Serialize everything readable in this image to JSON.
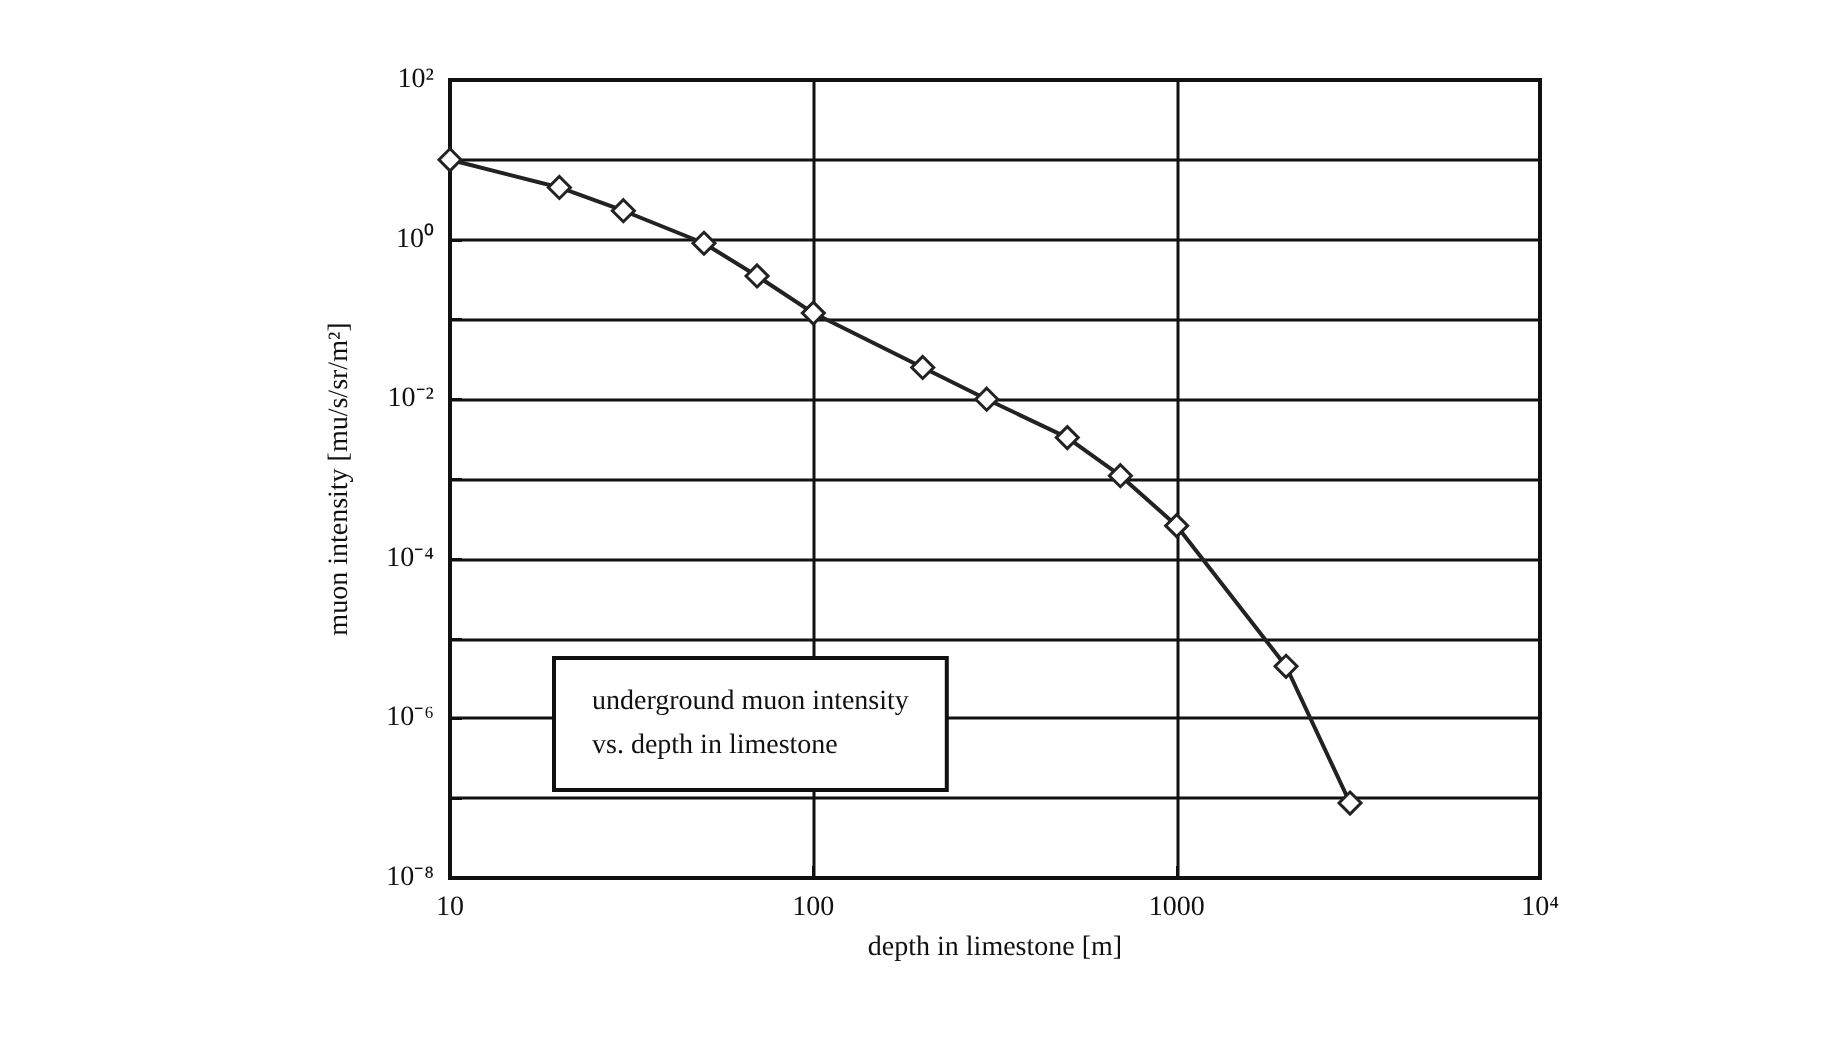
{
  "chart_data": {
    "type": "line",
    "xlabel": "depth in limestone [m]",
    "ylabel": "muon intensity [mu/s/sr/m²]",
    "annotations": [
      "underground muon intensity\nvs. depth in limestone"
    ],
    "x": [
      10,
      20,
      30,
      50,
      70,
      100,
      200,
      300,
      500,
      700,
      1000,
      2000,
      3000
    ],
    "series": [
      {
        "color": "#222222",
        "values": [
          10,
          4.5,
          2.3,
          0.9,
          0.35,
          0.12,
          0.025,
          0.01,
          0.0033,
          0.0011,
          0.00026,
          4.5e-06,
          8.7e-08
        ]
      }
    ],
    "log": "xy",
    "xlim": [
      10,
      10000
    ],
    "ylim": [
      1e-08,
      100
    ],
    "xticks": [
      10,
      100,
      1000,
      {
        "value": 10000,
        "label": "10⁴"
      }
    ],
    "yticks": [
      {
        "value": 1e-08,
        "label": "10⁻⁸"
      },
      {
        "value": 1e-07,
        "label": null
      },
      {
        "value": 1e-06,
        "label": "10⁻⁶"
      },
      {
        "value": 1e-05,
        "label": null
      },
      {
        "value": 0.0001,
        "label": "10⁻⁴"
      },
      {
        "value": 0.001,
        "label": null
      },
      {
        "value": 0.01,
        "label": "10⁻²"
      },
      {
        "value": 0.1,
        "label": null
      },
      {
        "value": 1,
        "label": "10⁰"
      },
      {
        "value": 10,
        "label": null
      },
      {
        "value": 100,
        "label": "10²"
      }
    ],
    "grid": true,
    "marker": "diamond",
    "line_style": "solid"
  }
}
